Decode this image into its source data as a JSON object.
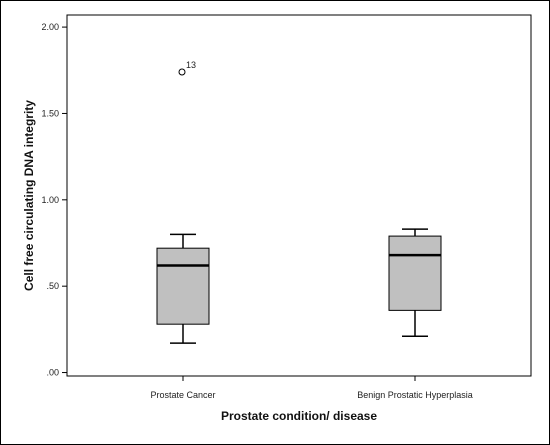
{
  "chart_data": {
    "type": "boxplot",
    "xlabel": "Prostate condition/ disease",
    "ylabel": "Cell free circulating DNA integrity",
    "ylim": [
      -0.02,
      2.07
    ],
    "yticks": [
      {
        "value": 0.0,
        "label": ".00"
      },
      {
        "value": 0.5,
        "label": ".50"
      },
      {
        "value": 1.0,
        "label": "1.00"
      },
      {
        "value": 1.5,
        "label": "1.50"
      },
      {
        "value": 2.0,
        "label": "2.00"
      }
    ],
    "categories": [
      "Prostate Cancer",
      "Benign Prostatic Hyperplasia"
    ],
    "boxes": [
      {
        "category": "Prostate Cancer",
        "whisker_low": 0.17,
        "q1": 0.28,
        "median": 0.62,
        "q3": 0.72,
        "whisker_high": 0.8,
        "outliers": [
          {
            "value": 1.74,
            "label": "13"
          }
        ]
      },
      {
        "category": "Benign Prostatic Hyperplasia",
        "whisker_low": 0.21,
        "q1": 0.36,
        "median": 0.68,
        "q3": 0.79,
        "whisker_high": 0.83,
        "outliers": []
      }
    ],
    "box_fill": "#c0c0c0",
    "line_color": "#000000",
    "grid": false
  }
}
